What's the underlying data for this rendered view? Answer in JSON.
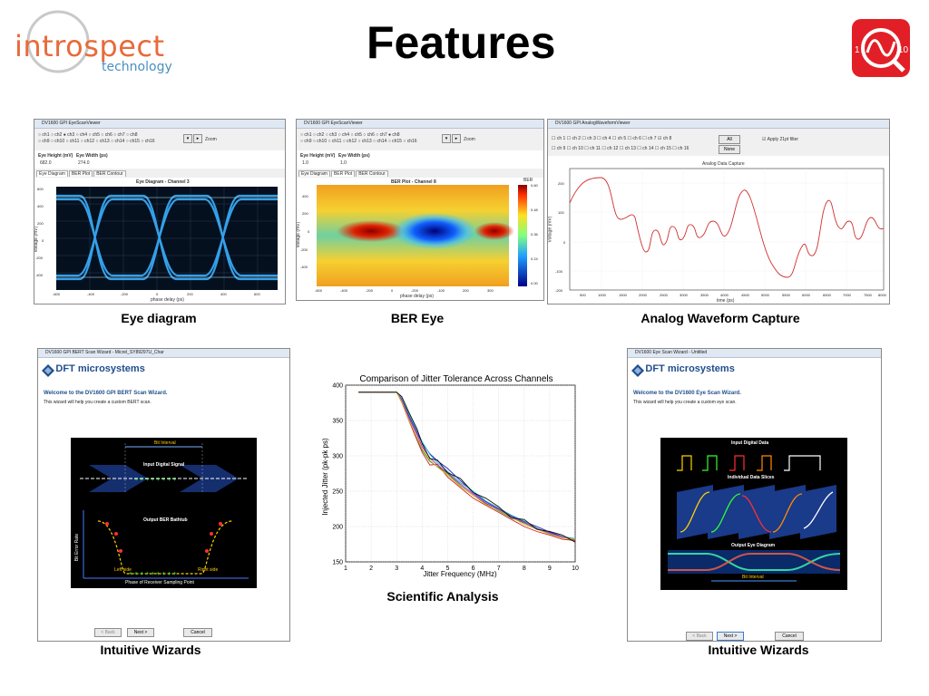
{
  "slide": {
    "title": "Features",
    "logo_main": "introspect",
    "logo_sub": "technology",
    "captions": {
      "eye": "Eye diagram",
      "ber": "BER Eye",
      "analog": "Analog Waveform Capture",
      "wizard_left": "Intuitive Wizards",
      "scientific": "Scientific Analysis",
      "wizard_right": "Intuitive Wizards"
    }
  },
  "eye_window": {
    "title": "DV1600 GPI EyeScanViewer",
    "eye_height_label": "Eye Height (mV)",
    "eye_height_value": "682.0",
    "eye_width_label": "Eye Width (ps)",
    "eye_width_value": "274.0",
    "zoom_label": "Zoom",
    "tabs": [
      "Eye Diagram",
      "BER Plot",
      "BER Contour"
    ],
    "plot_title": "Eye Diagram - Channel 3",
    "xlabel": "phase delay (ps)",
    "ylabel": "voltage (mV)"
  },
  "ber_window": {
    "title": "DV1600 GPI EyeScanViewer",
    "eye_height_label": "Eye Height (mV)",
    "eye_height_value": "1.0",
    "eye_width_label": "Eye Width (ps)",
    "eye_width_value": "1.0",
    "zoom_label": "Zoom",
    "tabs": [
      "Eye Diagram",
      "BER Plot",
      "BER Contour"
    ],
    "plot_title": "BER Plot - Channel 8",
    "xlabel": "phase delay (ps)",
    "ylabel": "voltage (mV)",
    "colorbar_label": "BER"
  },
  "analog_window": {
    "title": "DV1600 GPI AnalogWaveformViewer",
    "all_label": "All",
    "none_label": "None",
    "filter_label": "Apply 21pt filter",
    "plot_title": "Analog Data Capture",
    "xlabel": "time (ps)",
    "ylabel": "Voltage (mV)"
  },
  "bert_wizard": {
    "title": "DV1600 GPI BERT Scan Wizard - Micrel_SY89297U_Char",
    "brand": "DFT microsystems",
    "heading": "Welcome to the DV1600 GPI BERT Scan Wizard.",
    "text": "This wizard will help you create a custom BERT scan.",
    "bit_interval": "Bit Interval",
    "input_signal": "Input Digital Signal",
    "bathtub": "Output BER Bathtub",
    "y_axis": "Bit Error Rate",
    "left_side": "Left side",
    "right_side": "Right side",
    "x_axis": "Phase of Receiver Sampling Point",
    "back": "< Back",
    "next": "Next >",
    "cancel": "Cancel"
  },
  "eye_wizard": {
    "title": "DV1600 Eye Scan Wizard - Untitled",
    "brand": "DFT microsystems",
    "heading": "Welcome to the DV1600 Eye Scan Wizard.",
    "text": "This wizard will help you create a custom eye scan.",
    "input_data": "Input Digital Data",
    "slices": "Individual Data Slices",
    "output_eye": "Output Eye Diagram",
    "bit_interval": "Bit Interval",
    "back": "< Back",
    "next": "Next >",
    "cancel": "Cancel"
  },
  "chart_data": {
    "type": "line",
    "title": "Comparison of Jitter Tolerance Across Channels",
    "xlabel": "Jitter Frequency (MHz)",
    "ylabel": "Injected Jitter (pk-pk ps)",
    "xlim": [
      1,
      10
    ],
    "ylim": [
      150,
      400
    ],
    "xticks": [
      1,
      2,
      3,
      4,
      5,
      6,
      7,
      8,
      9,
      10
    ],
    "yticks": [
      150,
      200,
      250,
      300,
      350,
      400
    ],
    "grid": true,
    "x": [
      1.5,
      2.0,
      2.5,
      3.0,
      3.2,
      3.5,
      3.8,
      4.0,
      4.3,
      4.6,
      5.0,
      5.5,
      6.0,
      6.5,
      7.0,
      7.5,
      8.0,
      8.5,
      9.0,
      9.5,
      10.0
    ],
    "series": [
      {
        "color": "#1f1fbf",
        "values": [
          390,
          390,
          390,
          390,
          380,
          355,
          333,
          318,
          303,
          293,
          282,
          265,
          248,
          235,
          225,
          215,
          207,
          200,
          192,
          186,
          182
        ]
      },
      {
        "color": "#2a9a2a",
        "values": [
          390,
          390,
          390,
          390,
          378,
          350,
          325,
          308,
          292,
          285,
          275,
          258,
          244,
          232,
          222,
          212,
          205,
          197,
          190,
          185,
          180
        ]
      },
      {
        "color": "#d62020",
        "values": [
          390,
          390,
          390,
          390,
          376,
          348,
          322,
          305,
          287,
          288,
          270,
          255,
          240,
          230,
          220,
          210,
          200,
          193,
          188,
          182,
          180
        ]
      },
      {
        "color": "#20b8c0",
        "values": [
          390,
          390,
          390,
          390,
          382,
          358,
          336,
          320,
          302,
          290,
          278,
          262,
          250,
          236,
          226,
          216,
          208,
          198,
          190,
          186,
          183
        ]
      },
      {
        "color": "#c020c0",
        "values": [
          390,
          390,
          390,
          390,
          379,
          352,
          330,
          313,
          297,
          287,
          276,
          260,
          246,
          233,
          224,
          214,
          206,
          197,
          191,
          185,
          181
        ]
      },
      {
        "color": "#c8b820",
        "values": [
          390,
          390,
          390,
          390,
          377,
          349,
          326,
          310,
          294,
          284,
          273,
          257,
          244,
          231,
          223,
          213,
          203,
          196,
          189,
          184,
          182
        ]
      },
      {
        "color": "#111111",
        "values": [
          390,
          390,
          390,
          390,
          384,
          360,
          338,
          317,
          296,
          294,
          276,
          268,
          248,
          240,
          228,
          212,
          210,
          196,
          193,
          188,
          178
        ]
      }
    ]
  }
}
